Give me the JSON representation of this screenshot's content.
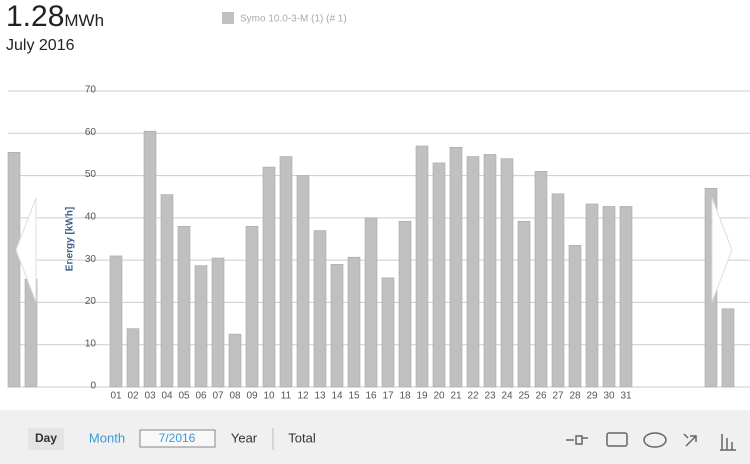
{
  "header": {
    "value": "1.28",
    "unit": "MWh",
    "period": "July 2016"
  },
  "chart_data": {
    "type": "bar",
    "ylabel": "Energy [kWh]",
    "categories": [
      null,
      null,
      null,
      null,
      null,
      null,
      "01",
      "02",
      "03",
      "04",
      "05",
      "06",
      "07",
      "08",
      "09",
      "10",
      "11",
      "12",
      "13",
      "14",
      "15",
      "16",
      "17",
      "18",
      "19",
      "20",
      "21",
      "22",
      "23",
      "24",
      "25",
      "26",
      "27",
      "28",
      "29",
      "30",
      "31",
      null,
      null,
      null,
      null,
      null,
      null
    ],
    "series": [
      {
        "name": "Symo 10.0-3-M (1) (# 1)",
        "color": "#c0c0c0",
        "values": [
          55.5,
          25.5,
          null,
          null,
          null,
          null,
          31,
          13.8,
          60.5,
          45.5,
          38,
          28.7,
          30.5,
          12.5,
          38,
          52,
          54.5,
          50,
          37,
          29,
          30.7,
          40,
          25.8,
          39.2,
          57,
          53,
          56.7,
          54.5,
          55,
          54,
          39.2,
          51,
          45.7,
          33.5,
          43.3,
          42.7,
          42.7,
          null,
          null,
          null,
          null,
          47,
          18.5
        ]
      }
    ],
    "ylim": [
      0,
      70
    ],
    "yticks": [
      0,
      10,
      20,
      30,
      40,
      50,
      60,
      70
    ],
    "grid": true
  },
  "controls": {
    "day": "Day",
    "month": "Month",
    "date": "7/2016",
    "year": "Year",
    "total": "Total"
  }
}
